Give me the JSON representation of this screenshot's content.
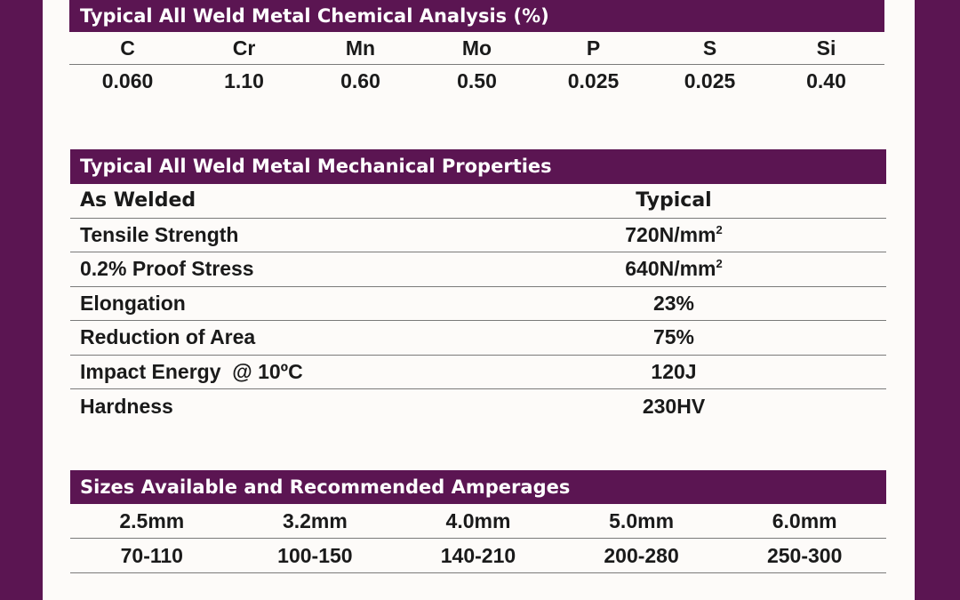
{
  "chemical_analysis": {
    "title": "Typical All Weld Metal Chemical Analysis (%)",
    "elements": [
      "C",
      "Cr",
      "Mn",
      "Mo",
      "P",
      "S",
      "Si"
    ],
    "values": [
      "0.060",
      "1.10",
      "0.60",
      "0.50",
      "0.025",
      "0.025",
      "0.40"
    ]
  },
  "mechanical_properties": {
    "title": "Typical All Weld Metal Mechanical Properties",
    "header": {
      "condition": "As Welded",
      "typical": "Typical"
    },
    "rows": [
      {
        "property": "Tensile Strength",
        "value": "720N/mm",
        "unit_power": "2"
      },
      {
        "property": "0.2% Proof Stress",
        "value": "640N/mm",
        "unit_power": "2"
      },
      {
        "property": "Elongation",
        "value": "23%"
      },
      {
        "property": "Reduction of Area",
        "value": "75%"
      },
      {
        "property": "Impact Energy  @ 10ºC",
        "value": "120J"
      },
      {
        "property": "Hardness",
        "value": "230HV"
      }
    ]
  },
  "sizes": {
    "title": "Sizes Available and Recommended Amperages",
    "diameters": [
      "2.5mm",
      "3.2mm",
      "4.0mm",
      "5.0mm",
      "6.0mm"
    ],
    "amperages": [
      "70-110",
      "100-150",
      "140-210",
      "200-280",
      "250-300"
    ]
  },
  "colors": {
    "brand_purple": "#5b1552",
    "sheet_background": "#fdfbf9",
    "rule_gray": "#7a7a7a"
  }
}
